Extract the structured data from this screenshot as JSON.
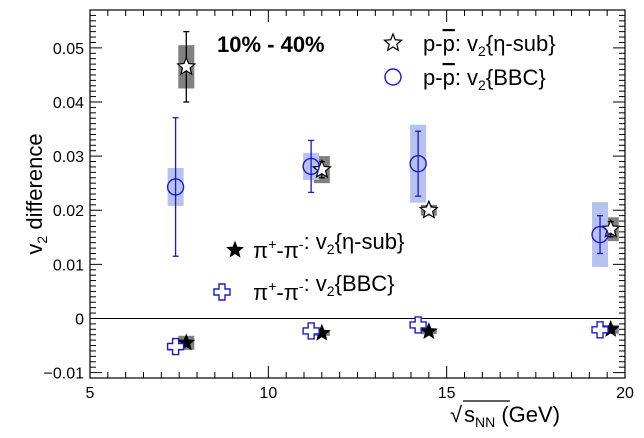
{
  "chart_data": {
    "type": "scatter",
    "xlabel": "√s_NN (GeV)",
    "ylabel": "v_2 difference",
    "xlim": [
      5,
      20
    ],
    "ylim": [
      -0.011,
      0.057
    ],
    "x_ticks": [
      "5",
      "10",
      "15",
      "20"
    ],
    "y_ticks": [
      "−0.01",
      "0",
      "0.01",
      "0.02",
      "0.03",
      "0.04",
      "0.05"
    ],
    "centrality_label": "10% - 40%",
    "grid": false,
    "zero_line": true,
    "legend_top_right": true,
    "legend_bottom_left": true,
    "series": [
      {
        "name": "p-p̄: v2{η-sub}",
        "legend": {
          "base": "p-",
          "bar": "p",
          "rest": ": v",
          "sub": "2",
          "tail": "{η-sub}"
        },
        "marker": "open-star",
        "color": "#000000",
        "syst_color": "#808080",
        "points": [
          {
            "x": 7.7,
            "y": 0.0465,
            "stat": 0.0065,
            "syst": 0.004
          },
          {
            "x": 11.5,
            "y": 0.0275,
            "stat": 0.0015,
            "syst": 0.0025
          },
          {
            "x": 14.5,
            "y": 0.02,
            "stat": 0.0008,
            "syst": 0.001
          },
          {
            "x": 19.6,
            "y": 0.0165,
            "stat": 0.0014,
            "syst": 0.0022
          }
        ]
      },
      {
        "name": "p-p̄: v2{BBC}",
        "legend": {
          "base": "p-",
          "bar": "p",
          "rest": ": v",
          "sub": "2",
          "tail": "{BBC}"
        },
        "marker": "open-circle",
        "color": "#1a1acc",
        "syst_color": "#b8c2ee",
        "points": [
          {
            "x": 7.4,
            "y": 0.0243,
            "stat": 0.0128,
            "syst": 0.0035
          },
          {
            "x": 11.2,
            "y": 0.0281,
            "stat": 0.0048,
            "syst": 0.0025
          },
          {
            "x": 14.2,
            "y": 0.0286,
            "stat": 0.006,
            "syst": 0.0072
          },
          {
            "x": 19.3,
            "y": 0.0155,
            "stat": 0.0035,
            "syst": 0.006
          }
        ]
      },
      {
        "name": "π+-π-: v2{η-sub}",
        "legend": {
          "base": "π",
          "sup1": "+",
          "mid": "-π",
          "sup2": "-",
          "rest": ": v",
          "sub": "2",
          "tail": "{η-sub}"
        },
        "marker": "filled-star",
        "color": "#000000",
        "syst_color": "#808080",
        "points": [
          {
            "x": 7.7,
            "y": -0.0045,
            "stat": 0.0002,
            "syst": 0.0013
          },
          {
            "x": 11.5,
            "y": -0.0027,
            "stat": 0.0002,
            "syst": 0.0005
          },
          {
            "x": 14.5,
            "y": -0.0024,
            "stat": 0.0002,
            "syst": 0.0005
          },
          {
            "x": 19.6,
            "y": -0.002,
            "stat": 0.0002,
            "syst": 0.0008
          }
        ]
      },
      {
        "name": "π+-π-: v2{BBC}",
        "legend": {
          "base": "π",
          "sup1": "+",
          "mid": "-π",
          "sup2": "-",
          "rest": ": v",
          "sub": "2",
          "tail": "{BBC}"
        },
        "marker": "open-cross",
        "color": "#1a1acc",
        "syst_color": "#b8c2ee",
        "points": [
          {
            "x": 7.4,
            "y": -0.0052,
            "stat": 0.0002,
            "syst": 0.0008
          },
          {
            "x": 11.2,
            "y": -0.0023,
            "stat": 0.0002,
            "syst": 0.0003
          },
          {
            "x": 14.2,
            "y": -0.0012,
            "stat": 0.0002,
            "syst": 0.0004
          },
          {
            "x": 19.3,
            "y": -0.0021,
            "stat": 0.0002,
            "syst": 0.0003
          }
        ]
      }
    ]
  }
}
